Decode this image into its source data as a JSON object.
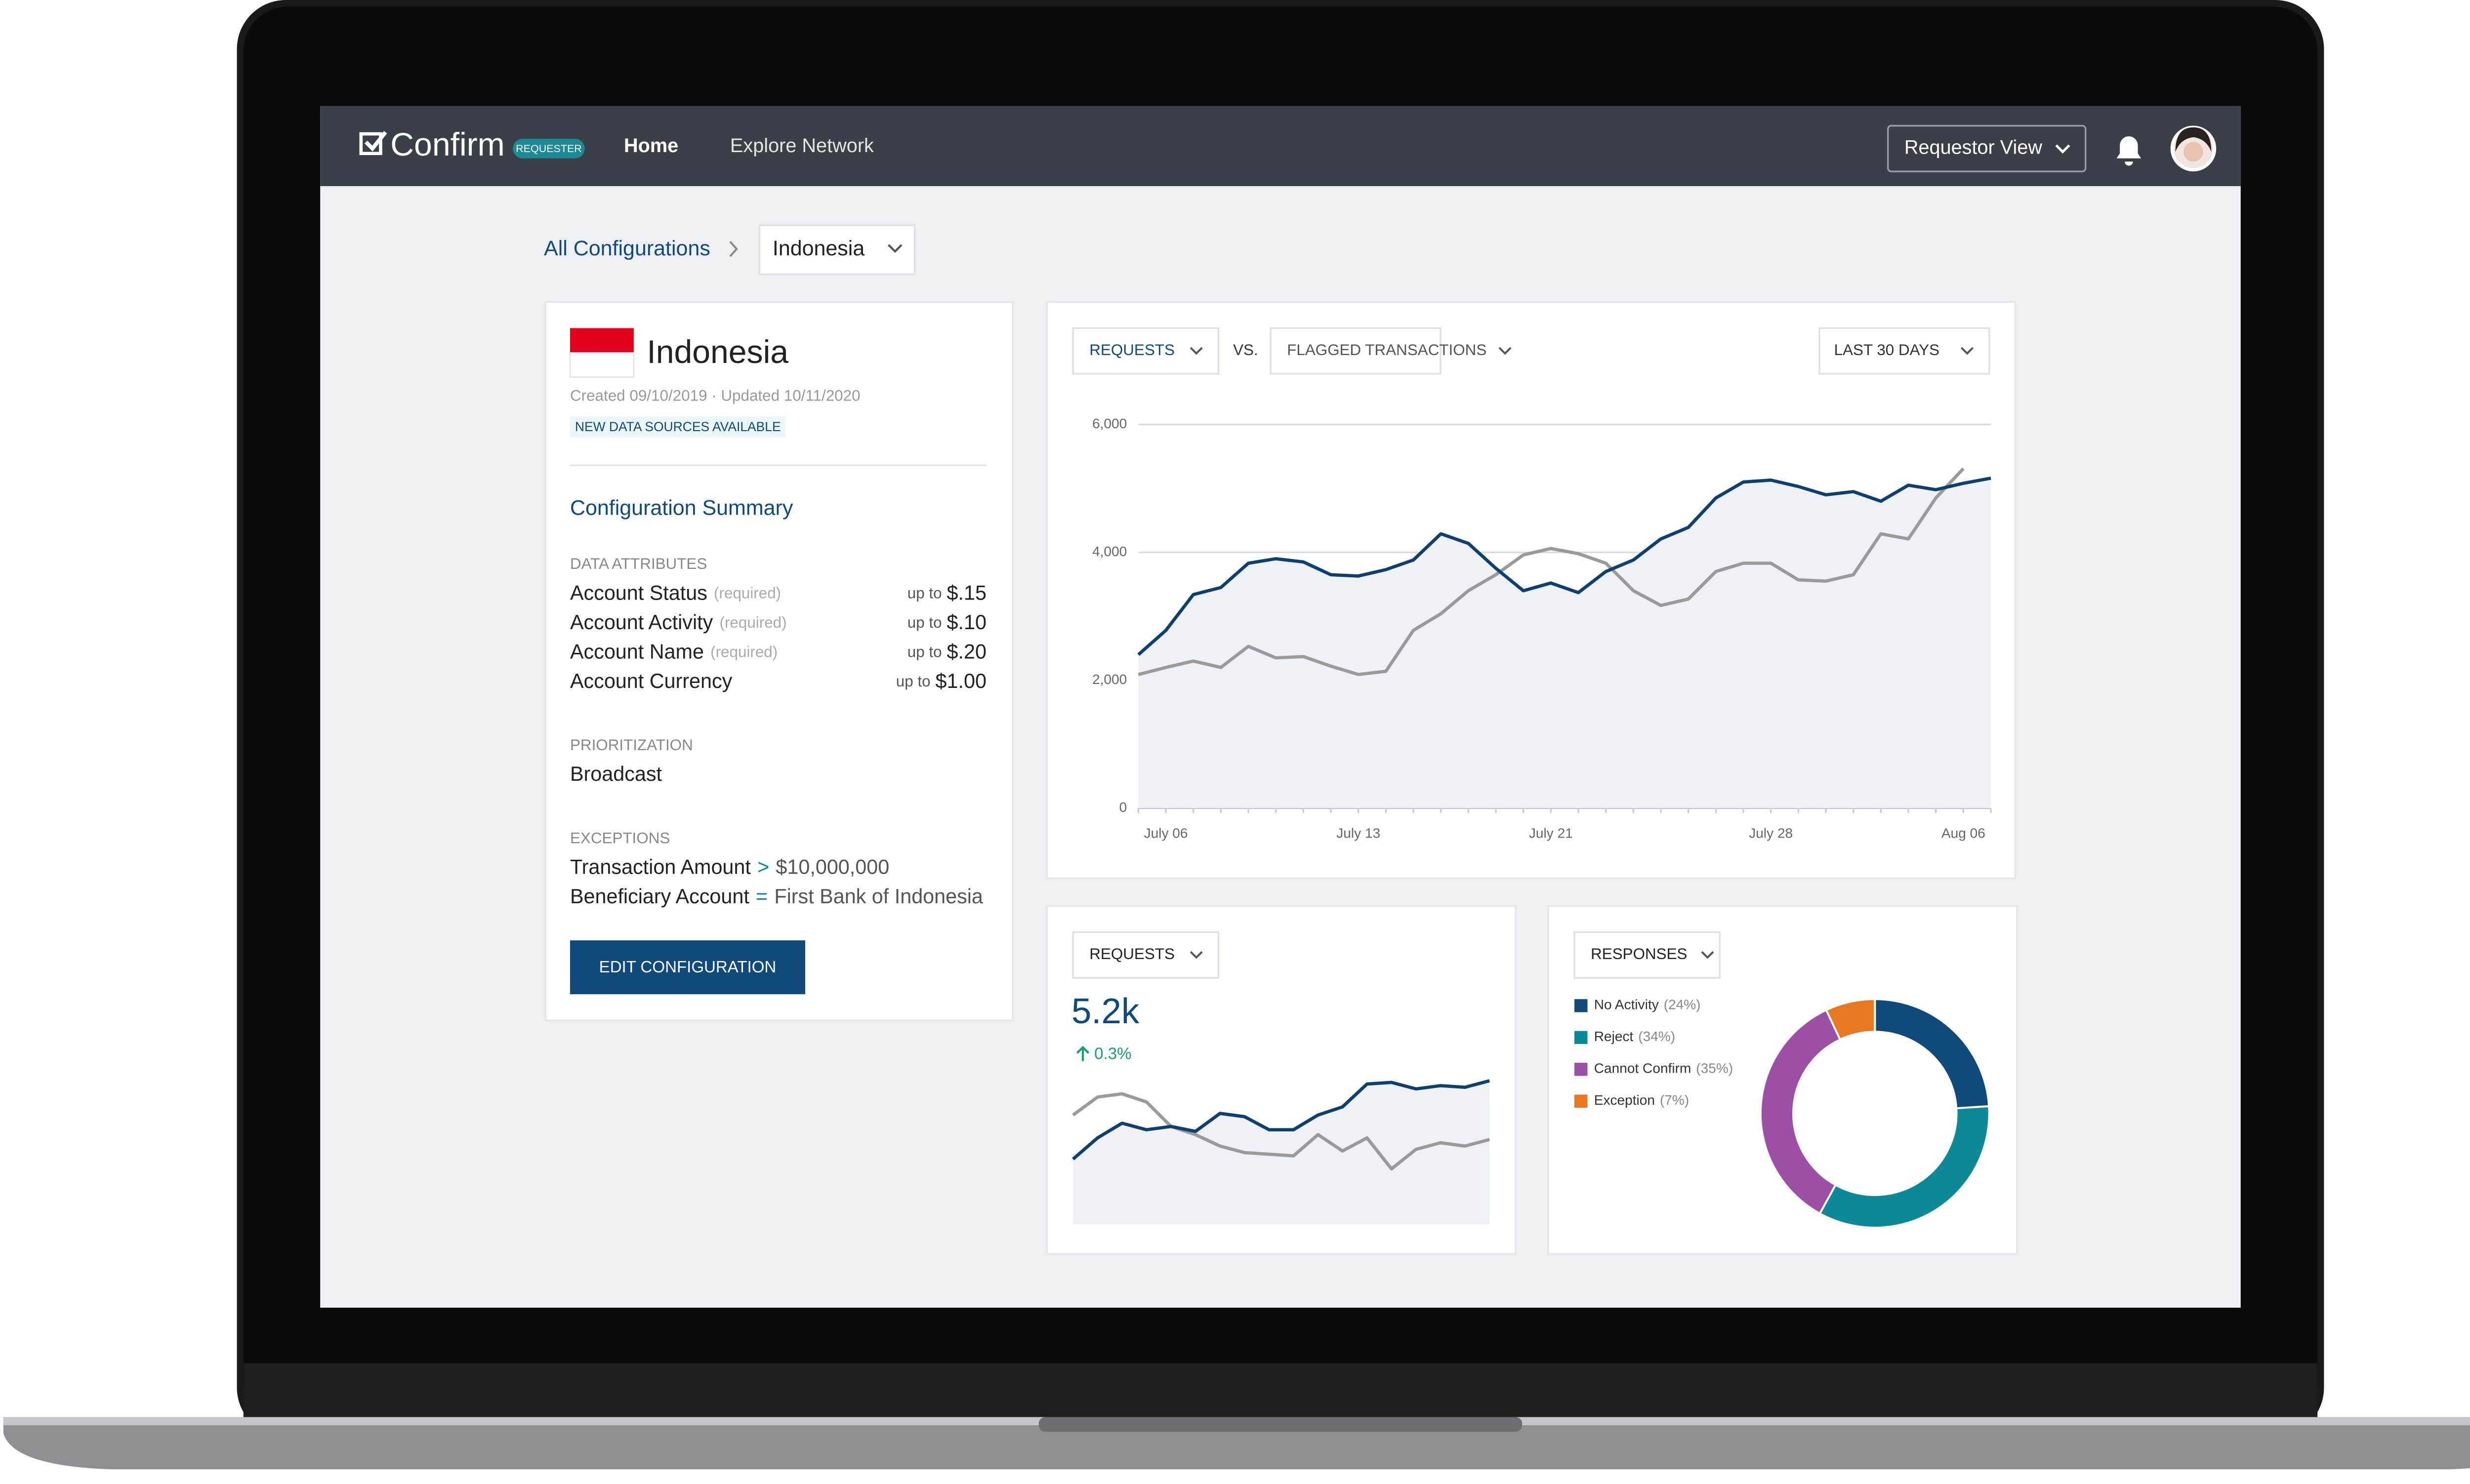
{
  "nav": {
    "brand": "Confirm",
    "badge": "REQUESTER",
    "links": [
      "Home",
      "Explore Network"
    ],
    "view_selector": "Requestor View"
  },
  "breadcrumb": {
    "root": "All Configurations",
    "current": "Indonesia"
  },
  "config": {
    "country": "Indonesia",
    "meta": "Created 09/10/2019 · Updated 10/11/2020",
    "notice": "NEW DATA SOURCES AVAILABLE",
    "summary_title": "Configuration Summary",
    "attributes_heading": "DATA ATTRIBUTES",
    "attributes": [
      {
        "name": "Account Status",
        "note": "(required)",
        "price_prefix": "up to",
        "price": "$.15"
      },
      {
        "name": "Account Activity",
        "note": "(required)",
        "price_prefix": "up to",
        "price": "$.10"
      },
      {
        "name": "Account Name",
        "note": "(required)",
        "price_prefix": "up to",
        "price": "$.20"
      },
      {
        "name": "Account Currency",
        "price_prefix": "up to",
        "price": "$1.00"
      }
    ],
    "prioritization_heading": "PRIORITIZATION",
    "prioritization": "Broadcast",
    "exceptions_heading": "EXCEPTIONS",
    "exceptions": [
      {
        "name": "Transaction Amount",
        "op": ">",
        "value": "$10,000,000"
      },
      {
        "name": "Beneficiary Account",
        "op": "=",
        "value": "First Bank of Indonesia"
      }
    ],
    "button": "EDIT CONFIGURATION"
  },
  "main_chart": {
    "type": "line",
    "vs": "VS.",
    "range": "LAST 30 DAYS",
    "categories": [
      null,
      "July 06",
      null,
      null,
      null,
      null,
      null,
      null,
      "July 13",
      null,
      null,
      null,
      null,
      null,
      null,
      "July 21",
      null,
      null,
      null,
      null,
      null,
      null,
      null,
      "July 28",
      null,
      null,
      null,
      null,
      null,
      null,
      "Aug 06",
      null
    ],
    "ylim": [
      0,
      6000
    ],
    "yticks": [
      0,
      {
        "value": 2000,
        "label": "2,000"
      },
      {
        "value": 4000,
        "label": "4,000"
      },
      {
        "value": 6000,
        "label": "6,000"
      }
    ],
    "grid": true,
    "series": [
      {
        "name": "REQUESTS",
        "color": "#0f3f6e",
        "area": true,
        "values": [
          2400,
          2780,
          3340,
          3450,
          3830,
          3900,
          3850,
          3650,
          3630,
          3730,
          3880,
          4290,
          4140,
          3750,
          3400,
          3520,
          3370,
          3700,
          3880,
          4210,
          4390,
          4850,
          5100,
          5130,
          5030,
          4900,
          4950,
          4800,
          5050,
          4980,
          5080,
          5160
        ]
      },
      {
        "name": "FLAGGED TRANSACTIONS",
        "color": "#9a9a9a",
        "area": false,
        "values": [
          2090,
          2200,
          2300,
          2200,
          2530,
          2350,
          2370,
          2220,
          2090,
          2140,
          2780,
          3040,
          3400,
          3650,
          3960,
          4060,
          3980,
          3830,
          3400,
          3170,
          3270,
          3700,
          3830,
          3830,
          3570,
          3550,
          3650,
          4290,
          4210,
          4850,
          5310,
          null
        ]
      }
    ]
  },
  "mini_chart": {
    "type": "line",
    "selector": "REQUESTS",
    "headline": "5.2k",
    "change": "0.3%",
    "series": [
      {
        "color": "#0f3f6e",
        "area": true,
        "values": [
          40,
          53,
          62,
          58,
          60,
          57,
          68,
          66,
          58,
          58,
          67,
          72,
          86,
          87,
          83,
          85,
          84,
          88
        ]
      },
      {
        "color": "#9a9a9a",
        "area": false,
        "values": [
          67,
          78,
          80,
          75,
          60,
          55,
          48,
          44,
          43,
          42,
          55,
          45,
          53,
          34,
          46,
          50,
          48,
          52
        ]
      }
    ]
  },
  "donut_chart": {
    "type": "pie",
    "selector": "RESPONSES",
    "categories": [
      "No Activity",
      "Reject",
      "Cannot Confirm",
      "Exception"
    ],
    "values": [
      24,
      34,
      35,
      7
    ],
    "value_labels": [
      "(24%)",
      "(34%)",
      "(35%)",
      "(7%)"
    ],
    "colors": [
      "#0f4a7a",
      "#0d8896",
      "#9b4fa5",
      "#e87722"
    ]
  }
}
